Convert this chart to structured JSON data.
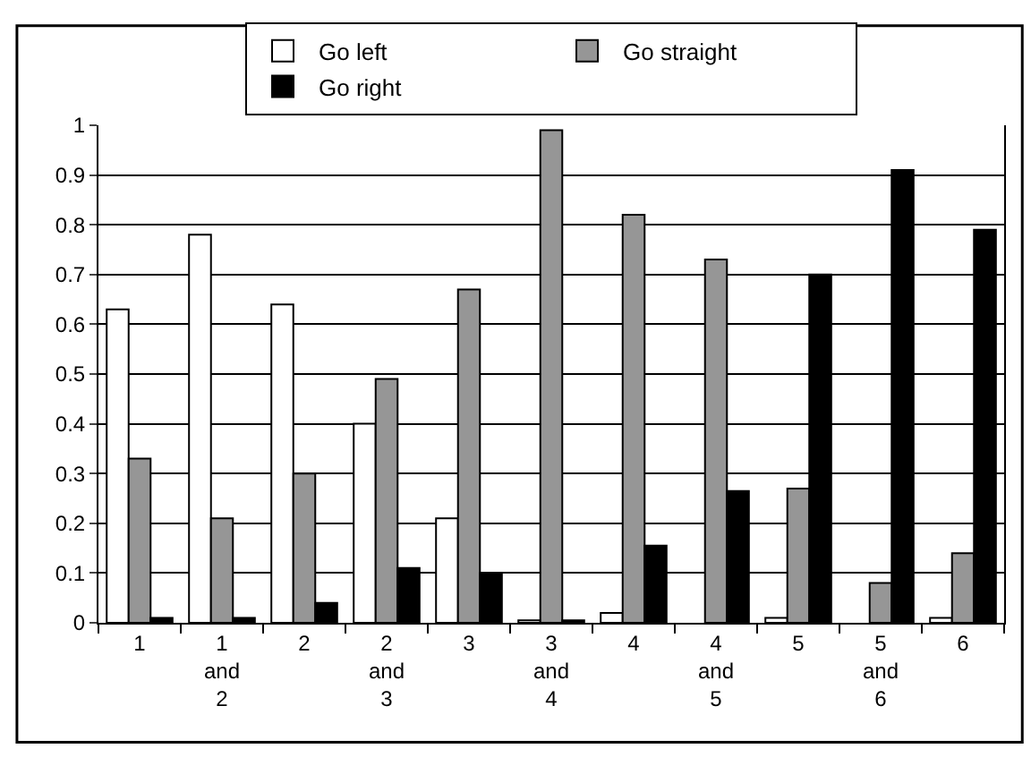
{
  "chart_data": {
    "type": "bar",
    "categories": [
      "1",
      "1 and 2",
      "2",
      "2 and 3",
      "3",
      "3 and 4",
      "4",
      "4 and 5",
      "5",
      "5 and 6",
      "6"
    ],
    "series": [
      {
        "name": "Go left",
        "color": "#ffffff",
        "values": [
          0.63,
          0.78,
          0.64,
          0.4,
          0.21,
          0.005,
          0.02,
          0,
          0.01,
          0,
          0.01
        ]
      },
      {
        "name": "Go straight",
        "color": "#969696",
        "values": [
          0.33,
          0.21,
          0.3,
          0.49,
          0.67,
          0.99,
          0.82,
          0.73,
          0.27,
          0.08,
          0.14
        ]
      },
      {
        "name": "Go right",
        "color": "#000000",
        "values": [
          0.01,
          0.01,
          0.04,
          0.11,
          0.1,
          0.005,
          0.155,
          0.265,
          0.7,
          0.91,
          0.79
        ]
      }
    ],
    "ylim": [
      0,
      1
    ],
    "yticks": [
      0,
      0.1,
      0.2,
      0.3,
      0.4,
      0.5,
      0.6,
      0.7,
      0.8,
      0.9,
      1
    ],
    "grid": "y",
    "legend": "top"
  }
}
